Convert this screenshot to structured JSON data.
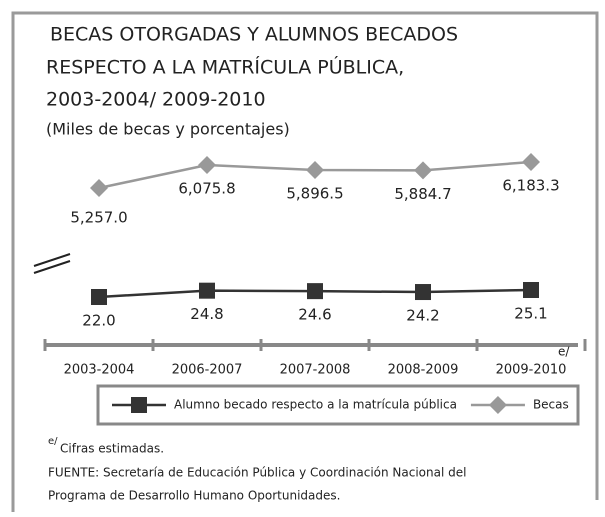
{
  "chart_data": {
    "type": "line",
    "title": [
      "BECAS OTORGADAS Y  ALUMNOS BECADOS",
      "RESPECTO A LA MATRÍCULA PÚBLICA,",
      "2003-2004/ 2009-2010"
    ],
    "subtitle": "(Miles de becas y porcentajes)",
    "categories": [
      "2003-2004",
      "2006-2007",
      "2007-2008",
      "2008-2009",
      "2009-2010"
    ],
    "annotation": "e/",
    "series": [
      {
        "name": "Alumno becado respecto a la matrícula pública",
        "color": "#333333",
        "marker": "square",
        "values": [
          22.0,
          24.8,
          24.6,
          24.2,
          25.1
        ],
        "value_labels": [
          "22.0",
          "24.8",
          "24.6",
          "24.2",
          "25.1"
        ]
      },
      {
        "name": "Becas",
        "color": "#999999",
        "marker": "diamond",
        "values": [
          5257.0,
          6075.8,
          5896.5,
          5884.7,
          6183.3
        ],
        "value_labels": [
          "5,257.0",
          "6,075.8",
          "5,896.5",
          "5,884.7",
          "6,183.3"
        ]
      }
    ],
    "footnote": {
      "mark": "e/",
      "text": "Cifras estimadas."
    },
    "source": [
      "FUENTE: Secretaría de Educación Pública y Coordinación Nacional del",
      "Programa de Desarrollo Humano Oportunidades."
    ]
  }
}
